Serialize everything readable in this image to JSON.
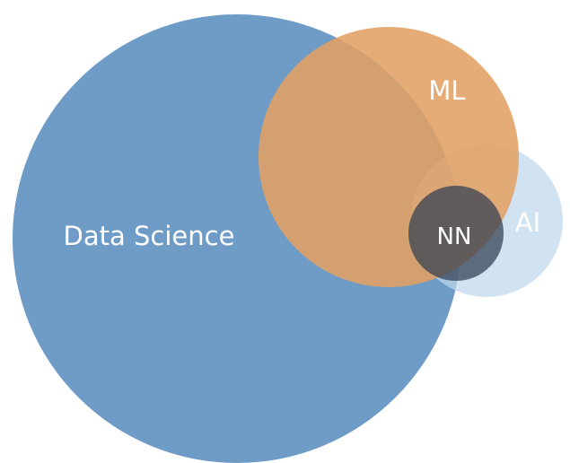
{
  "diagram": {
    "type": "venn",
    "sets": [
      {
        "id": "data-science",
        "label": "Data Science",
        "color": "#6f9cc6"
      },
      {
        "id": "ml",
        "label": "ML",
        "color": "#e2a064"
      },
      {
        "id": "ai",
        "label": "AI",
        "color": "#c5dbec"
      },
      {
        "id": "nn",
        "label": "NN",
        "color": "#3f4f60"
      }
    ],
    "relationships": [
      "ML overlaps Data Science",
      "AI overlaps ML and Data Science",
      "NN lies within ML and AI"
    ]
  }
}
